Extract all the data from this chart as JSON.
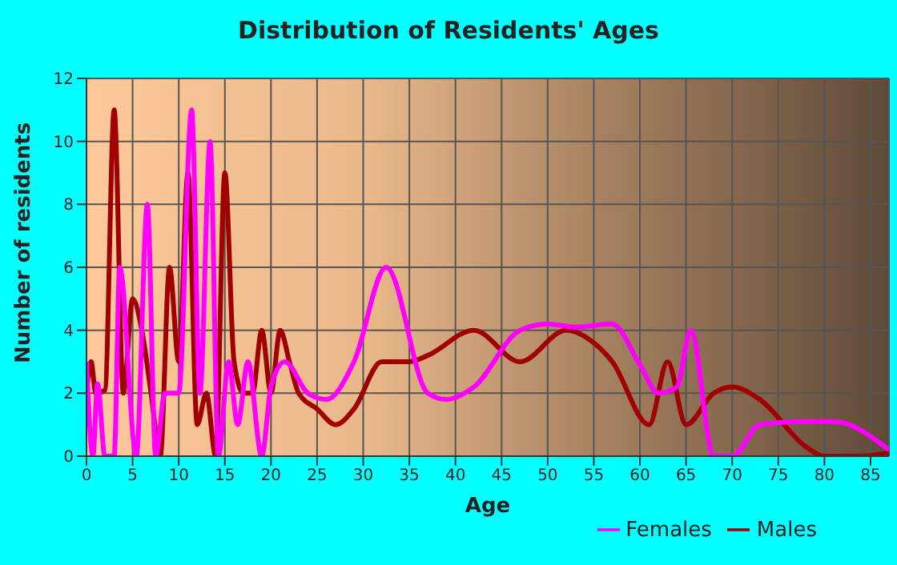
{
  "chart_data": {
    "type": "line",
    "title": "Distribution of Residents' Ages",
    "xlabel": "Age",
    "ylabel": "Number of residents",
    "xlim": [
      0,
      87
    ],
    "xticks": [
      0,
      5,
      10,
      15,
      20,
      25,
      30,
      35,
      40,
      45,
      50,
      55,
      60,
      65,
      70,
      75,
      80,
      85
    ],
    "ylim": [
      0,
      12
    ],
    "yticks": [
      0,
      2,
      4,
      6,
      8,
      10,
      12
    ],
    "grid": true,
    "legend": "bottom right",
    "marker": "none",
    "line_style": "solid",
    "series": [
      {
        "name": "Males",
        "color": "#a00000",
        "x": [
          0,
          0.5,
          1,
          2,
          3,
          4,
          5,
          6,
          7,
          8,
          9,
          10,
          11,
          12,
          13,
          14,
          15,
          16,
          17,
          18,
          19,
          20,
          21,
          22,
          23,
          25,
          27,
          29,
          32,
          35,
          37,
          42,
          47,
          52,
          55,
          57,
          61,
          63,
          65,
          68,
          70,
          73,
          78,
          80,
          84,
          87
        ],
        "values": [
          2,
          3,
          2,
          2.1,
          11,
          2,
          5,
          4,
          2,
          0,
          6,
          3,
          9,
          1,
          2,
          0,
          9,
          3,
          2,
          2,
          4,
          2,
          4,
          3,
          2,
          1.5,
          1,
          1.5,
          3,
          3,
          3.2,
          4,
          3,
          4,
          3.6,
          3,
          1,
          3,
          1,
          2,
          2.2,
          1.8,
          0.3,
          0,
          0,
          0.1
        ]
      },
      {
        "name": "Females",
        "color": "#ff00ff",
        "x": [
          0,
          0.7,
          1.2,
          2,
          3,
          3.6,
          5.4,
          6.6,
          7.5,
          8.5,
          10,
          11.4,
          12.3,
          13.4,
          14.3,
          15.4,
          16.4,
          17.5,
          19,
          20,
          21.5,
          24,
          26,
          29,
          32.5,
          37,
          39,
          42,
          47,
          50,
          53,
          57,
          60,
          62,
          64,
          65.5,
          68,
          70,
          73,
          78,
          81,
          87
        ],
        "values": [
          3,
          0,
          2.3,
          0,
          0,
          6,
          0,
          8,
          0,
          2,
          2,
          11,
          2,
          10,
          0,
          3,
          1,
          3,
          0,
          2.2,
          3,
          2,
          1.8,
          3,
          6,
          2,
          1.8,
          2.2,
          4,
          4.2,
          4.1,
          4.2,
          2.9,
          2,
          2.2,
          4,
          0,
          0,
          1,
          1.1,
          1.1,
          0.2
        ]
      }
    ]
  }
}
